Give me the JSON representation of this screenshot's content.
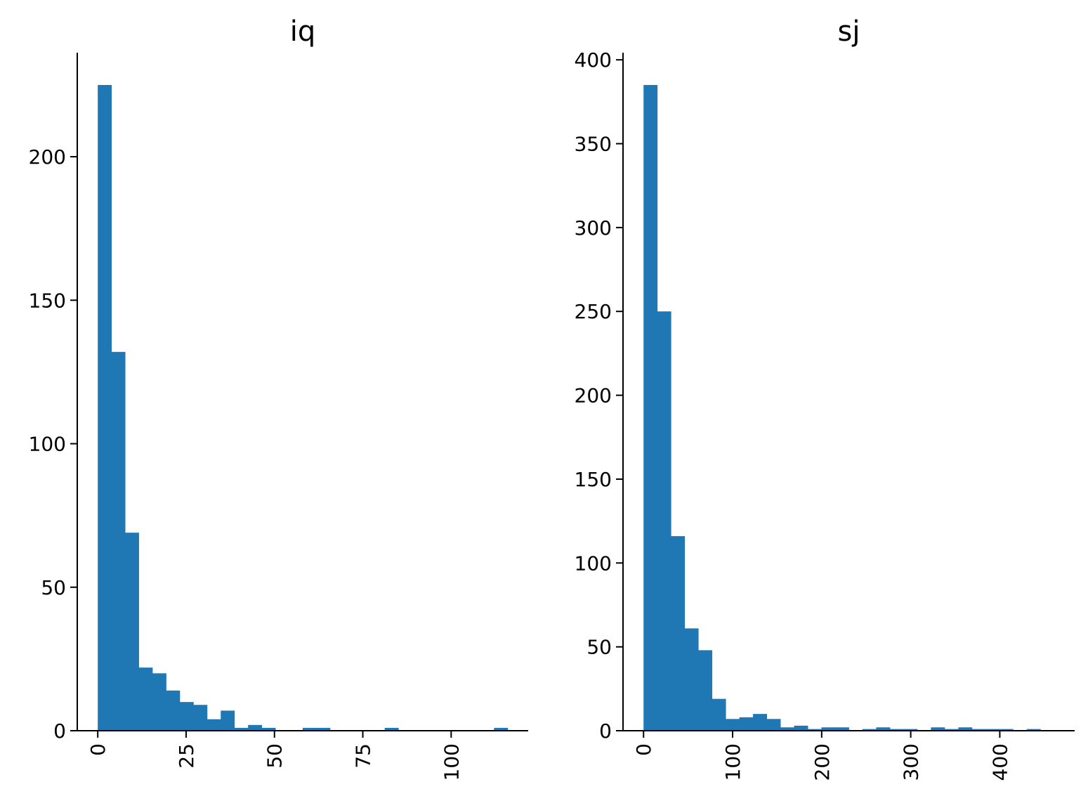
{
  "chart_data": [
    {
      "type": "bar",
      "title": "iq",
      "bin_range": [
        0,
        116
      ],
      "counts": [
        225,
        132,
        69,
        22,
        20,
        14,
        10,
        9,
        4,
        7,
        1,
        2,
        1,
        0,
        0,
        1,
        1,
        0,
        0,
        0,
        0,
        1,
        0,
        0,
        0,
        0,
        0,
        0,
        0,
        1
      ],
      "xlim": [
        -5.8,
        121.8
      ],
      "ylim": [
        0,
        236.25
      ],
      "xticks": [
        0,
        25,
        50,
        75,
        100
      ],
      "xtick_labels": [
        "0",
        "25",
        "50",
        "75",
        "100"
      ],
      "yticks": [
        0,
        50,
        100,
        150,
        200
      ],
      "ytick_labels": [
        "0",
        "50",
        "100",
        "150",
        "200"
      ],
      "xtick_rotation": 90,
      "color": "#1f77b4",
      "spines": "left-bottom",
      "grid": false
    },
    {
      "type": "bar",
      "title": "sj",
      "bin_range": [
        0,
        461
      ],
      "counts": [
        385,
        250,
        116,
        61,
        48,
        19,
        7,
        8,
        10,
        7,
        2,
        3,
        1,
        2,
        2,
        0,
        1,
        2,
        1,
        1,
        0,
        2,
        1,
        2,
        1,
        1,
        1,
        0,
        1,
        0
      ],
      "xlim": [
        -23.05,
        484.05
      ],
      "ylim": [
        0,
        404.25
      ],
      "xticks": [
        0,
        100,
        200,
        300,
        400
      ],
      "xtick_labels": [
        "0",
        "100",
        "200",
        "300",
        "400"
      ],
      "yticks": [
        0,
        50,
        100,
        150,
        200,
        250,
        300,
        350,
        400
      ],
      "ytick_labels": [
        "0",
        "50",
        "100",
        "150",
        "200",
        "250",
        "300",
        "350",
        "400"
      ],
      "xtick_rotation": 90,
      "color": "#1f77b4",
      "spines": "left-bottom",
      "grid": false
    }
  ]
}
